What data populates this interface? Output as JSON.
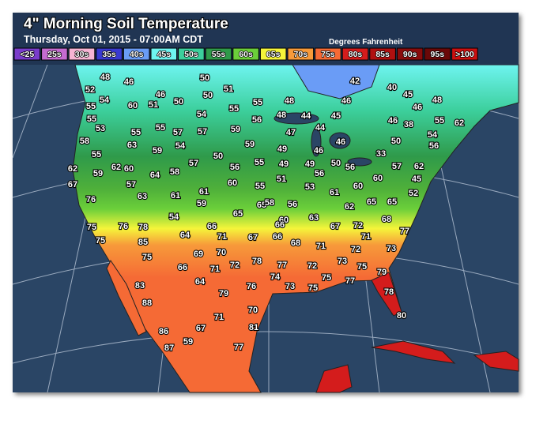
{
  "header": {
    "title": "4\" Morning Soil Temperature",
    "subtitle": "Thursday, Oct 01, 2015 - 07:00AM CDT",
    "units": "Degrees Fahrenheit"
  },
  "legend": [
    {
      "label": "<25",
      "color": "#7a3ccc"
    },
    {
      "label": "25s",
      "color": "#c56bd0"
    },
    {
      "label": "30s",
      "color": "#f7b4d4"
    },
    {
      "label": "35s",
      "color": "#3a3ad0"
    },
    {
      "label": "40s",
      "color": "#6a9cf6"
    },
    {
      "label": "45s",
      "color": "#6ef4f0"
    },
    {
      "label": "50s",
      "color": "#3ccf9c"
    },
    {
      "label": "55s",
      "color": "#2f9a4a"
    },
    {
      "label": "60s",
      "color": "#6bcf3a"
    },
    {
      "label": "65s",
      "color": "#f5f53a"
    },
    {
      "label": "70s",
      "color": "#f79a3a"
    },
    {
      "label": "75s",
      "color": "#f56a35"
    },
    {
      "label": "80s",
      "color": "#d41c1c"
    },
    {
      "label": "85s",
      "color": "#b01010"
    },
    {
      "label": "90s",
      "color": "#8a0c0c"
    },
    {
      "label": "95s",
      "color": "#6a0808"
    },
    {
      "label": ">100",
      "color": "#cc1010"
    }
  ],
  "readings": [
    48,
    46,
    50,
    42,
    40,
    45,
    48,
    46,
    52,
    54,
    50,
    51,
    46,
    51,
    50,
    55,
    48,
    46,
    55,
    60,
    54,
    55,
    48,
    44,
    45,
    46,
    38,
    55,
    62,
    55,
    53,
    55,
    55,
    57,
    57,
    59,
    56,
    47,
    44,
    54,
    58,
    63,
    59,
    54,
    49,
    46,
    46,
    33,
    50,
    56,
    55,
    59,
    50,
    57,
    56,
    55,
    49,
    49,
    50,
    56,
    57,
    62,
    62,
    62,
    60,
    59,
    64,
    58,
    56,
    51,
    53,
    57,
    60,
    55,
    61,
    60,
    60,
    45,
    67,
    76,
    63,
    61,
    61,
    59,
    65,
    58,
    56,
    62,
    65,
    52,
    65,
    54,
    65,
    60,
    63,
    68,
    75,
    76,
    78,
    66,
    66,
    67,
    72,
    77,
    75,
    85,
    64,
    71,
    67,
    66,
    68,
    71,
    75,
    69,
    70,
    71,
    72,
    73,
    66,
    71,
    72,
    78,
    77,
    72,
    73,
    75,
    79,
    83,
    64,
    74,
    76,
    73,
    75,
    77,
    75,
    79,
    78,
    88,
    70,
    80,
    71,
    81,
    67,
    86,
    59,
    87,
    77
  ]
}
